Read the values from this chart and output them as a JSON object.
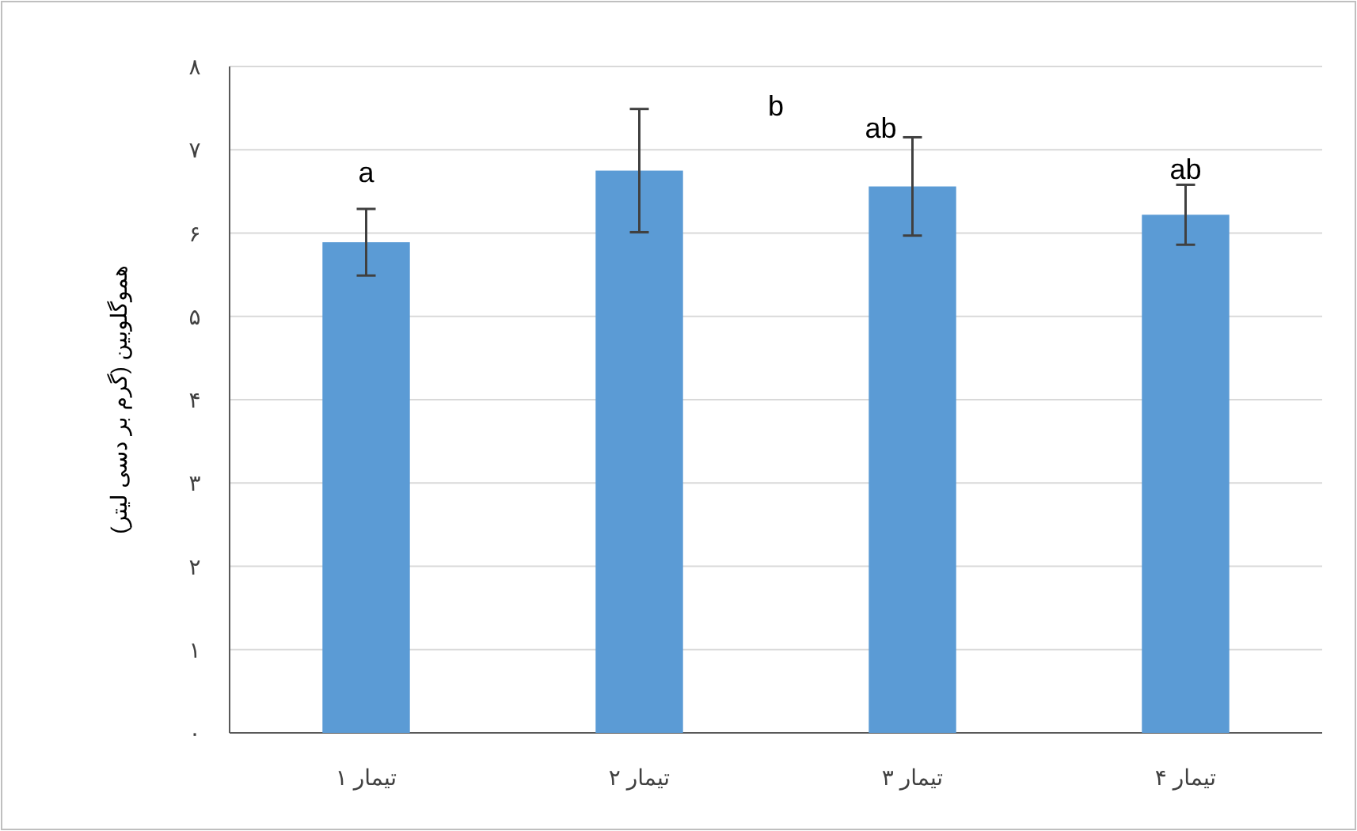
{
  "chart_data": {
    "type": "bar",
    "ylabel": "هموگلوبین (گرم بر دسی لیتر)",
    "categories": [
      "تیمار ۱",
      "تیمار ۲",
      "تیمار ۳",
      "تیمار ۴"
    ],
    "values": [
      5.89,
      6.75,
      6.56,
      6.22
    ],
    "errors": [
      [
        5.49,
        6.29
      ],
      [
        6.01,
        7.49
      ],
      [
        5.97,
        7.15
      ],
      [
        5.86,
        6.58
      ]
    ],
    "color": "#5b9bd5",
    "ylim": [
      0,
      8
    ],
    "yticks": [
      {
        "value": 0,
        "label": "۰"
      },
      {
        "value": 1,
        "label": "۱"
      },
      {
        "value": 2,
        "label": "۲"
      },
      {
        "value": 3,
        "label": "۳"
      },
      {
        "value": 4,
        "label": "۴"
      },
      {
        "value": 5,
        "label": "۵"
      },
      {
        "value": 6,
        "label": "۶"
      },
      {
        "value": 7,
        "label": "۷"
      },
      {
        "value": 8,
        "label": "۸"
      }
    ],
    "grid": "y",
    "annotations": [
      "a",
      "b",
      "ab",
      "ab"
    ]
  }
}
